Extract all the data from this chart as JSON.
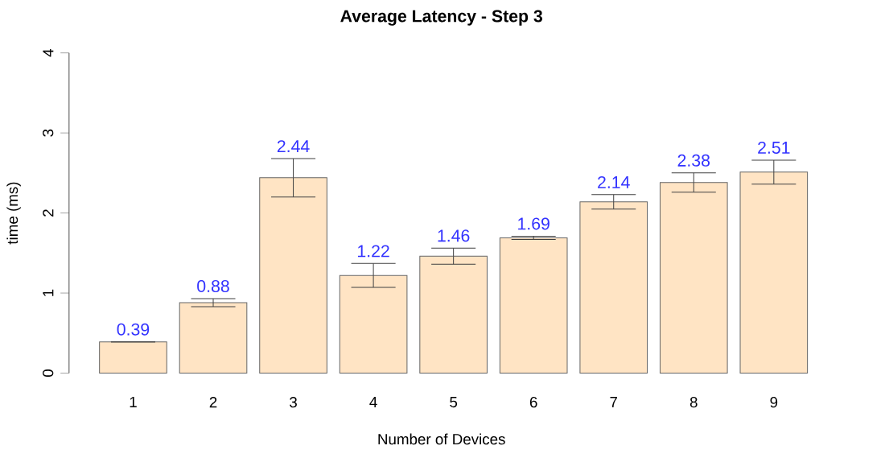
{
  "chart_data": {
    "type": "bar",
    "title": "Average Latency - Step 3",
    "xlabel": "Number of Devices",
    "ylabel": "time (ms)",
    "categories": [
      "1",
      "2",
      "3",
      "4",
      "5",
      "6",
      "7",
      "8",
      "9"
    ],
    "values": [
      0.39,
      0.88,
      2.44,
      1.22,
      1.46,
      1.69,
      2.14,
      2.38,
      2.51
    ],
    "errors": [
      null,
      0.05,
      0.24,
      0.15,
      0.1,
      0.02,
      0.09,
      0.12,
      0.15
    ],
    "value_labels": [
      "0.39",
      "0.88",
      "2.44",
      "1.22",
      "1.46",
      "1.69",
      "2.14",
      "2.38",
      "2.51"
    ],
    "color": "#ffe4c4",
    "ylim": [
      0,
      4
    ],
    "yticks": [
      0,
      1,
      2,
      3,
      4
    ],
    "grid": false
  }
}
